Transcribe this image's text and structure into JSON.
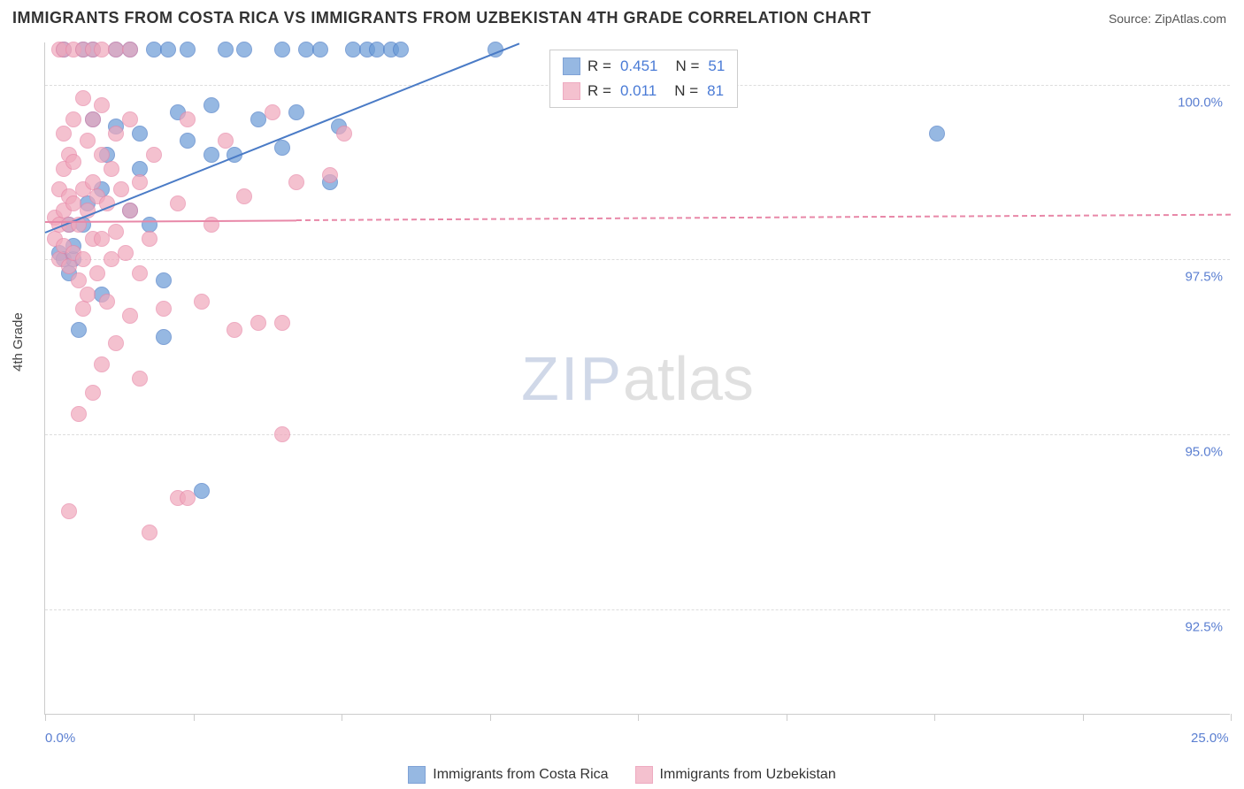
{
  "header": {
    "title": "IMMIGRANTS FROM COSTA RICA VS IMMIGRANTS FROM UZBEKISTAN 4TH GRADE CORRELATION CHART",
    "source_prefix": "Source: ",
    "source_name": "ZipAtlas.com"
  },
  "chart": {
    "type": "scatter",
    "y_label": "4th Grade",
    "background_color": "#ffffff",
    "grid_color": "#dddddd",
    "axis_color": "#cccccc",
    "tick_label_color": "#5b7fd1",
    "tick_fontsize": 15,
    "xlim": [
      0,
      25
    ],
    "ylim": [
      91.0,
      100.6
    ],
    "x_ticks": [
      0,
      3.125,
      6.25,
      9.375,
      12.5,
      15.625,
      18.75,
      21.875,
      25
    ],
    "x_tick_labels": {
      "0": "0.0%",
      "25": "25.0%"
    },
    "y_ticks": [
      92.5,
      95.0,
      97.5,
      100.0
    ],
    "y_tick_labels": [
      "92.5%",
      "95.0%",
      "97.5%",
      "100.0%"
    ],
    "marker_radius": 9,
    "marker_fill_opacity": 0.35,
    "marker_stroke_width": 1.5,
    "series": [
      {
        "name": "Immigrants from Costa Rica",
        "color": "#6b9bd6",
        "stroke": "#4a7bc6",
        "r_value": "0.451",
        "n_value": "51",
        "trend": {
          "x1": 0.0,
          "y1": 97.9,
          "x2_solid": 10.0,
          "y2_solid": 100.6,
          "x2_dash": 10.0,
          "y2_dash": 100.6
        },
        "points": [
          [
            0.3,
            97.6
          ],
          [
            0.4,
            97.5
          ],
          [
            0.5,
            97.3
          ],
          [
            0.5,
            98.0
          ],
          [
            0.6,
            97.5
          ],
          [
            0.6,
            97.7
          ],
          [
            0.7,
            96.5
          ],
          [
            0.8,
            98.0
          ],
          [
            0.8,
            100.5
          ],
          [
            0.9,
            98.3
          ],
          [
            1.0,
            99.5
          ],
          [
            1.0,
            100.5
          ],
          [
            1.2,
            97.0
          ],
          [
            1.2,
            98.5
          ],
          [
            1.3,
            99.0
          ],
          [
            1.5,
            99.4
          ],
          [
            1.5,
            100.5
          ],
          [
            1.8,
            98.2
          ],
          [
            1.8,
            100.5
          ],
          [
            2.0,
            98.8
          ],
          [
            2.0,
            99.3
          ],
          [
            2.2,
            98.0
          ],
          [
            2.3,
            100.5
          ],
          [
            2.5,
            97.2
          ],
          [
            2.5,
            96.4
          ],
          [
            2.8,
            99.6
          ],
          [
            3.0,
            99.2
          ],
          [
            3.0,
            100.5
          ],
          [
            3.3,
            94.2
          ],
          [
            3.5,
            99.0
          ],
          [
            3.5,
            99.7
          ],
          [
            3.8,
            100.5
          ],
          [
            4.0,
            99.0
          ],
          [
            4.2,
            100.5
          ],
          [
            4.5,
            99.5
          ],
          [
            5.0,
            99.1
          ],
          [
            5.0,
            100.5
          ],
          [
            5.3,
            99.6
          ],
          [
            5.5,
            100.5
          ],
          [
            5.8,
            100.5
          ],
          [
            6.0,
            98.6
          ],
          [
            6.2,
            99.4
          ],
          [
            6.5,
            100.5
          ],
          [
            6.8,
            100.5
          ],
          [
            7.0,
            100.5
          ],
          [
            7.3,
            100.5
          ],
          [
            7.5,
            100.5
          ],
          [
            9.5,
            100.5
          ],
          [
            18.8,
            99.3
          ],
          [
            0.4,
            100.5
          ],
          [
            2.6,
            100.5
          ]
        ]
      },
      {
        "name": "Immigrants from Uzbekistan",
        "color": "#f0a8bc",
        "stroke": "#e888a8",
        "r_value": "0.011",
        "n_value": "81",
        "trend": {
          "x1": 0.0,
          "y1": 98.05,
          "x2_solid": 5.3,
          "y2_solid": 98.07,
          "x2_dash": 25.0,
          "y2_dash": 98.15
        },
        "points": [
          [
            0.2,
            97.8
          ],
          [
            0.2,
            98.1
          ],
          [
            0.3,
            97.5
          ],
          [
            0.3,
            98.0
          ],
          [
            0.3,
            98.5
          ],
          [
            0.3,
            100.5
          ],
          [
            0.4,
            97.7
          ],
          [
            0.4,
            98.2
          ],
          [
            0.4,
            98.8
          ],
          [
            0.4,
            99.3
          ],
          [
            0.4,
            100.5
          ],
          [
            0.5,
            93.9
          ],
          [
            0.5,
            97.4
          ],
          [
            0.5,
            98.0
          ],
          [
            0.5,
            98.4
          ],
          [
            0.5,
            99.0
          ],
          [
            0.6,
            97.6
          ],
          [
            0.6,
            98.3
          ],
          [
            0.6,
            98.9
          ],
          [
            0.6,
            99.5
          ],
          [
            0.6,
            100.5
          ],
          [
            0.7,
            95.3
          ],
          [
            0.7,
            97.2
          ],
          [
            0.7,
            98.0
          ],
          [
            0.8,
            96.8
          ],
          [
            0.8,
            97.5
          ],
          [
            0.8,
            98.5
          ],
          [
            0.8,
            99.8
          ],
          [
            0.8,
            100.5
          ],
          [
            0.9,
            97.0
          ],
          [
            0.9,
            98.2
          ],
          [
            0.9,
            99.2
          ],
          [
            1.0,
            95.6
          ],
          [
            1.0,
            97.8
          ],
          [
            1.0,
            98.6
          ],
          [
            1.0,
            99.5
          ],
          [
            1.0,
            100.5
          ],
          [
            1.1,
            97.3
          ],
          [
            1.1,
            98.4
          ],
          [
            1.2,
            96.0
          ],
          [
            1.2,
            97.8
          ],
          [
            1.2,
            99.0
          ],
          [
            1.2,
            99.7
          ],
          [
            1.2,
            100.5
          ],
          [
            1.3,
            96.9
          ],
          [
            1.3,
            98.3
          ],
          [
            1.4,
            97.5
          ],
          [
            1.4,
            98.8
          ],
          [
            1.5,
            96.3
          ],
          [
            1.5,
            97.9
          ],
          [
            1.5,
            99.3
          ],
          [
            1.5,
            100.5
          ],
          [
            1.6,
            98.5
          ],
          [
            1.7,
            97.6
          ],
          [
            1.8,
            96.7
          ],
          [
            1.8,
            98.2
          ],
          [
            1.8,
            99.5
          ],
          [
            1.8,
            100.5
          ],
          [
            2.0,
            95.8
          ],
          [
            2.0,
            97.3
          ],
          [
            2.0,
            98.6
          ],
          [
            2.2,
            93.6
          ],
          [
            2.2,
            97.8
          ],
          [
            2.3,
            99.0
          ],
          [
            2.5,
            96.8
          ],
          [
            2.8,
            94.1
          ],
          [
            2.8,
            98.3
          ],
          [
            3.0,
            99.5
          ],
          [
            3.0,
            94.1
          ],
          [
            3.3,
            96.9
          ],
          [
            3.5,
            98.0
          ],
          [
            3.8,
            99.2
          ],
          [
            4.0,
            96.5
          ],
          [
            4.2,
            98.4
          ],
          [
            4.5,
            96.6
          ],
          [
            4.8,
            99.6
          ],
          [
            5.0,
            96.6
          ],
          [
            5.0,
            95.0
          ],
          [
            5.3,
            98.6
          ],
          [
            6.0,
            98.7
          ],
          [
            6.3,
            99.3
          ]
        ]
      }
    ],
    "legend_box": {
      "r_label": "R =",
      "n_label": "N ="
    },
    "watermark": {
      "part1": "ZIP",
      "part2": "atlas"
    }
  }
}
